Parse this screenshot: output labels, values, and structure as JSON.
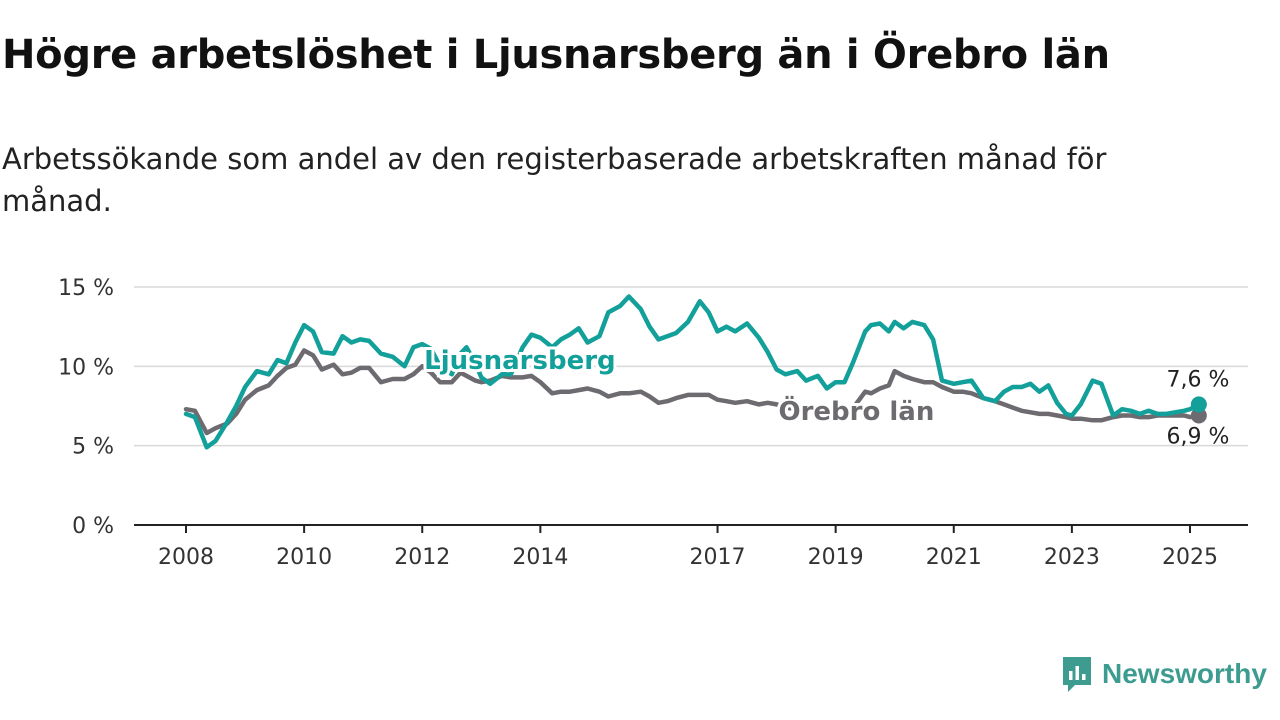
{
  "header": {
    "title": "Högre arbetslöshet i Ljusnarsberg än i Örebro län",
    "subtitle": "Arbetssökande som andel av den registerbaserade arbetskraften månad för månad."
  },
  "brand": {
    "name": "Newsworthy",
    "icon": "newsworthy-logo-icon",
    "color": "#3d9c8f"
  },
  "chart_data": {
    "type": "line",
    "title": "Högre arbetslöshet i Ljusnarsberg än i Örebro län",
    "subtitle": "Arbetssökande som andel av den registerbaserade arbetskraften månad för månad.",
    "xlabel": "",
    "ylabel": "",
    "xlim": [
      2008,
      2025.4
    ],
    "ylim": [
      0,
      15
    ],
    "y_ticks": [
      0,
      5,
      10,
      15
    ],
    "y_tick_labels": [
      "0 %",
      "5 %",
      "10 %",
      "15 %"
    ],
    "x_ticks": [
      2008,
      2010,
      2012,
      2014,
      2017,
      2019,
      2021,
      2023,
      2025
    ],
    "x_tick_labels": [
      "2008",
      "2010",
      "2012",
      "2014",
      "2017",
      "2019",
      "2021",
      "2023",
      "2025"
    ],
    "grid": "horizontal",
    "series": [
      {
        "name": "Ljusnarsberg",
        "color": "#13a09a",
        "end_label": "7,6 %",
        "x": [
          2008.0,
          2008.15,
          2008.35,
          2008.5,
          2008.7,
          2008.85,
          2009.0,
          2009.2,
          2009.4,
          2009.55,
          2009.7,
          2009.85,
          2010.0,
          2010.15,
          2010.3,
          2010.5,
          2010.65,
          2010.8,
          2010.95,
          2011.1,
          2011.3,
          2011.5,
          2011.7,
          2011.85,
          2012.0,
          2012.15,
          2012.3,
          2012.5,
          2012.65,
          2012.75,
          2012.9,
          2013.0,
          2013.15,
          2013.35,
          2013.5,
          2013.7,
          2013.85,
          2014.0,
          2014.2,
          2014.35,
          2014.5,
          2014.65,
          2014.8,
          2015.0,
          2015.15,
          2015.35,
          2015.5,
          2015.7,
          2015.85,
          2016.0,
          2016.15,
          2016.3,
          2016.5,
          2016.7,
          2016.85,
          2017.0,
          2017.15,
          2017.3,
          2017.5,
          2017.7,
          2017.85,
          2018.0,
          2018.15,
          2018.35,
          2018.5,
          2018.7,
          2018.85,
          2019.0,
          2019.15,
          2019.3,
          2019.5,
          2019.6,
          2019.75,
          2019.9,
          2020.0,
          2020.15,
          2020.3,
          2020.5,
          2020.65,
          2020.8,
          2021.0,
          2021.15,
          2021.3,
          2021.5,
          2021.7,
          2021.85,
          2022.0,
          2022.15,
          2022.3,
          2022.45,
          2022.6,
          2022.75,
          2022.9,
          2023.0,
          2023.15,
          2023.35,
          2023.5,
          2023.7,
          2023.85,
          2024.0,
          2024.15,
          2024.3,
          2024.45,
          2024.6,
          2024.75,
          2024.9,
          2025.0,
          2025.15
        ],
        "values": [
          7.0,
          6.8,
          4.9,
          5.3,
          6.5,
          7.5,
          8.7,
          9.7,
          9.5,
          10.4,
          10.2,
          11.5,
          12.6,
          12.2,
          10.9,
          10.8,
          11.9,
          11.5,
          11.7,
          11.6,
          10.8,
          10.6,
          10.0,
          11.2,
          11.4,
          11.1,
          10.0,
          9.5,
          10.8,
          11.2,
          10.2,
          9.3,
          8.9,
          9.5,
          9.5,
          11.2,
          12.0,
          11.8,
          11.2,
          11.7,
          12.0,
          12.4,
          11.5,
          11.9,
          13.4,
          13.8,
          14.4,
          13.6,
          12.5,
          11.7,
          11.9,
          12.1,
          12.8,
          14.1,
          13.4,
          12.2,
          12.5,
          12.2,
          12.7,
          11.8,
          10.9,
          9.8,
          9.5,
          9.7,
          9.1,
          9.4,
          8.6,
          9.0,
          9.0,
          10.3,
          12.2,
          12.6,
          12.7,
          12.2,
          12.8,
          12.4,
          12.8,
          12.6,
          11.7,
          9.1,
          8.9,
          9.0,
          9.1,
          8.0,
          7.8,
          8.4,
          8.7,
          8.7,
          8.9,
          8.4,
          8.8,
          7.7,
          7.0,
          6.9,
          7.6,
          9.1,
          8.9,
          6.9,
          7.3,
          7.2,
          7.0,
          7.2,
          7.0,
          7.0,
          7.1,
          7.2,
          7.3,
          7.6
        ]
      },
      {
        "name": "Örebro län",
        "color": "#6e6b70",
        "end_label": "6,9 %",
        "x": [
          2008.0,
          2008.15,
          2008.35,
          2008.5,
          2008.7,
          2008.85,
          2009.0,
          2009.2,
          2009.4,
          2009.55,
          2009.7,
          2009.85,
          2010.0,
          2010.15,
          2010.3,
          2010.5,
          2010.65,
          2010.8,
          2010.95,
          2011.1,
          2011.3,
          2011.5,
          2011.7,
          2011.85,
          2012.0,
          2012.15,
          2012.3,
          2012.5,
          2012.65,
          2012.75,
          2012.9,
          2013.0,
          2013.15,
          2013.35,
          2013.5,
          2013.7,
          2013.85,
          2014.0,
          2014.2,
          2014.35,
          2014.5,
          2014.65,
          2014.8,
          2015.0,
          2015.15,
          2015.35,
          2015.5,
          2015.7,
          2015.85,
          2016.0,
          2016.15,
          2016.3,
          2016.5,
          2016.7,
          2016.85,
          2017.0,
          2017.15,
          2017.3,
          2017.5,
          2017.7,
          2017.85,
          2018.0,
          2018.15,
          2018.35,
          2018.5,
          2018.7,
          2018.85,
          2019.0,
          2019.15,
          2019.3,
          2019.5,
          2019.6,
          2019.75,
          2019.9,
          2020.0,
          2020.15,
          2020.3,
          2020.5,
          2020.65,
          2020.8,
          2021.0,
          2021.15,
          2021.3,
          2021.5,
          2021.7,
          2021.85,
          2022.0,
          2022.15,
          2022.3,
          2022.45,
          2022.6,
          2022.75,
          2022.9,
          2023.0,
          2023.15,
          2023.35,
          2023.5,
          2023.7,
          2023.85,
          2024.0,
          2024.15,
          2024.3,
          2024.45,
          2024.6,
          2024.75,
          2024.9,
          2025.0,
          2025.15
        ],
        "values": [
          7.3,
          7.2,
          5.8,
          6.1,
          6.4,
          7.0,
          7.9,
          8.5,
          8.8,
          9.4,
          9.9,
          10.1,
          11.0,
          10.7,
          9.8,
          10.1,
          9.5,
          9.6,
          9.9,
          9.9,
          9.0,
          9.2,
          9.2,
          9.5,
          10.0,
          9.6,
          9.0,
          9.0,
          9.6,
          9.4,
          9.1,
          9.0,
          9.1,
          9.4,
          9.3,
          9.3,
          9.4,
          9.0,
          8.3,
          8.4,
          8.4,
          8.5,
          8.6,
          8.4,
          8.1,
          8.3,
          8.3,
          8.4,
          8.1,
          7.7,
          7.8,
          8.0,
          8.2,
          8.2,
          8.2,
          7.9,
          7.8,
          7.7,
          7.8,
          7.6,
          7.7,
          7.6,
          7.4,
          7.3,
          7.4,
          7.4,
          7.4,
          7.3,
          7.3,
          7.4,
          8.4,
          8.3,
          8.6,
          8.8,
          9.7,
          9.4,
          9.2,
          9.0,
          9.0,
          8.7,
          8.4,
          8.4,
          8.3,
          8.0,
          7.8,
          7.6,
          7.4,
          7.2,
          7.1,
          7.0,
          7.0,
          6.9,
          6.8,
          6.7,
          6.7,
          6.6,
          6.6,
          6.8,
          6.9,
          6.9,
          6.8,
          6.8,
          6.9,
          6.9,
          6.9,
          6.9,
          6.8,
          6.9
        ]
      }
    ],
    "annotations": [
      {
        "text": "Ljusnarsberg",
        "series": "Ljusnarsberg",
        "x": 2012.1,
        "y": 10.2
      },
      {
        "text": "Örebro län",
        "series": "Örebro län",
        "x": 2018.1,
        "y": 7.0
      }
    ]
  }
}
